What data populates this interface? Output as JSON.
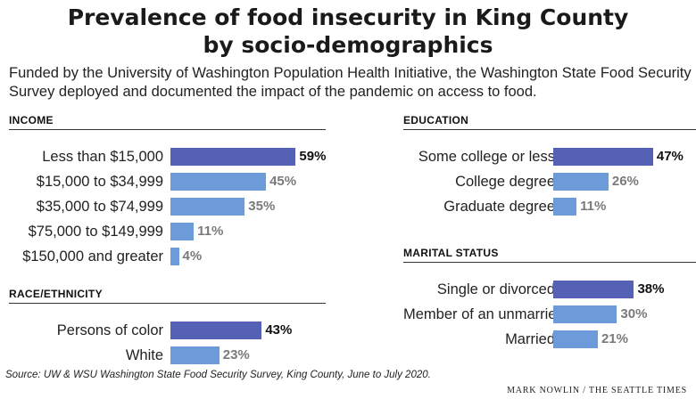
{
  "title_line1": "Prevalence of food insecurity in King County",
  "title_line2": "by socio-demographics",
  "subtitle": "Funded by the University of Washington Population Health Initiative, the Washington State Food Security Survey deployed and documented the impact of the pandemic on access to food.",
  "source": "Source: UW & WSU Washington State Food Security Survey, King County, June to July 2020.",
  "credit": "MARK NOWLIN / THE SEATTLE TIMES",
  "colors": {
    "highlight_bar": "#5561b5",
    "regular_bar": "#6d9ad8",
    "highlight_value": "#111111",
    "regular_value": "#7a7a7a"
  },
  "chart_data": [
    {
      "type": "bar",
      "title": "INCOME",
      "categories": [
        "Less than $15,000",
        "$15,000 to $34,999",
        "$35,000 to $74,999",
        "$75,000 to $149,999",
        "$150,000 and greater"
      ],
      "values": [
        59,
        45,
        35,
        11,
        4
      ],
      "labels": [
        "59%",
        "45%",
        "35%",
        "11%",
        "4%"
      ],
      "unit": "%",
      "highlight_index": 0
    },
    {
      "type": "bar",
      "title": "RACE/ETHNICITY",
      "categories": [
        "Persons of color",
        "White"
      ],
      "values": [
        43,
        23
      ],
      "labels": [
        "43%",
        "23%"
      ],
      "unit": "%",
      "highlight_index": 0
    },
    {
      "type": "bar",
      "title": "EDUCATION",
      "categories": [
        "Some college or less",
        "College degree",
        "Graduate degree"
      ],
      "values": [
        47,
        26,
        11
      ],
      "labels": [
        "47%",
        "26%",
        "11%"
      ],
      "unit": "%",
      "highlight_index": 0
    },
    {
      "type": "bar",
      "title": "MARITAL STATUS",
      "categories": [
        "Single or divorced",
        "Member of an unmarried couple",
        "Married"
      ],
      "values": [
        38,
        30,
        21
      ],
      "labels": [
        "38%",
        "30%",
        "21%"
      ],
      "unit": "%",
      "highlight_index": 0
    }
  ]
}
